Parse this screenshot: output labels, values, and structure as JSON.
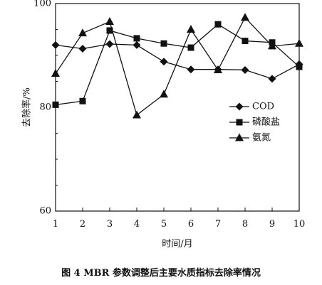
{
  "chart_data": {
    "type": "line",
    "xlabel": "时间/月",
    "ylabel": "去除率/%",
    "xlim": [
      1,
      10
    ],
    "ylim": [
      60,
      100
    ],
    "x_ticks": [
      "1",
      "2",
      "3",
      "4",
      "5",
      "6",
      "7",
      "8",
      "9",
      "10"
    ],
    "y_ticks": [
      "60",
      "80",
      "100"
    ],
    "grid": false,
    "legend_position": "right-middle",
    "x": [
      1,
      2,
      3,
      4,
      5,
      6,
      7,
      8,
      9,
      10
    ],
    "series": [
      {
        "name": "COD",
        "marker": "diamond",
        "values": [
          92.0,
          91.3,
          92.2,
          92.0,
          88.8,
          87.3,
          87.3,
          87.2,
          85.5,
          88.3
        ]
      },
      {
        "name": "磷酸盐",
        "marker": "square",
        "values": [
          80.5,
          81.2,
          94.8,
          93.3,
          92.3,
          91.5,
          96.0,
          92.8,
          92.5,
          87.8
        ]
      },
      {
        "name": "氨氮",
        "marker": "triangle",
        "values": [
          86.5,
          94.3,
          96.5,
          78.5,
          82.5,
          95.0,
          87.2,
          97.3,
          91.8,
          92.3
        ]
      }
    ]
  },
  "caption": "图 4 MBR 参数调整后主要水质指标去除率情况"
}
